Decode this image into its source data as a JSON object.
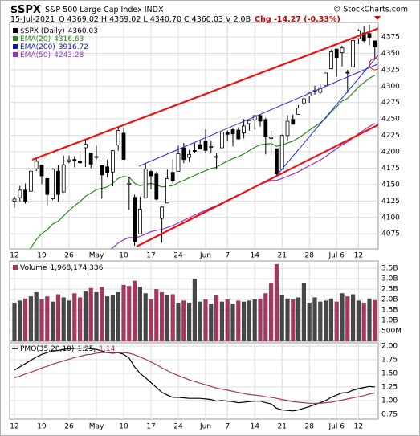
{
  "header": {
    "symbol": "$SPX",
    "name": "S&P 500 Large Cap Index INDX",
    "credit": "© StockCharts.com",
    "date": "15-Jul-2021",
    "quote": "O 4369.02 H 4369.02 L 4340.70 C 4360.03 V 2.0B",
    "change": "Chg -14.27 (-0.33%)"
  },
  "chart_data": [
    {
      "type": "candlestick",
      "series_label": "$SPX (Daily)",
      "last": 4360.03,
      "color": "#000000",
      "up_fill": "#ffffff",
      "down_fill": "#000000",
      "categories": [
        "12",
        null,
        null,
        null,
        null,
        "19",
        null,
        null,
        null,
        null,
        "26",
        null,
        null,
        null,
        null,
        "May",
        null,
        null,
        null,
        null,
        "10",
        null,
        null,
        null,
        null,
        "17",
        null,
        null,
        null,
        null,
        "24",
        null,
        null,
        null,
        null,
        "Jun",
        null,
        null,
        null,
        "7",
        null,
        null,
        null,
        null,
        "14",
        null,
        null,
        null,
        null,
        "21",
        null,
        null,
        null,
        null,
        "28",
        null,
        null,
        null,
        null,
        "Jul 6",
        null,
        null,
        null,
        "12",
        null,
        null,
        null
      ],
      "open": [
        4124.71,
        4130.1,
        4141.58,
        4139.76,
        4174.14,
        4179.8,
        4159.18,
        4128.42,
        4170.46,
        4138.78,
        4185.03,
        4188.25,
        4185.14,
        4206.14,
        4198.1,
        4191.98,
        4179.04,
        4177.06,
        4169.14,
        4210.34,
        4228.29,
        4150.34,
        4130.55,
        4074.99,
        4129.58,
        4169.92,
        4165.94,
        4098.45,
        4121.97,
        4168.61,
        4170.16,
        4205.94,
        4191.59,
        4201.94,
        4210.77,
        4216.52,
        4206.82,
        4191.43,
        4206.05,
        4229.34,
        4233.81,
        4232.99,
        4228.56,
        4242.9,
        4248.31,
        4255.28,
        4248.87,
        4220.37,
        4204.78,
        4173.4,
        4224.61,
        4249.27,
        4256.97,
        4274.45,
        4284.9,
        4293.21,
        4290.65,
        4300.73,
        4326.6,
        4356.46,
        4351.01,
        4321.07,
        4329.38,
        4372.41,
        4381.07,
        4380.11,
        4369.02
      ],
      "high": [
        4131.76,
        4148.0,
        4151.69,
        4173.49,
        4191.31,
        4180.81,
        4159.18,
        4175.02,
        4179.57,
        4194.17,
        4194.19,
        4193.35,
        4201.53,
        4218.78,
        4198.1,
        4209.39,
        4179.04,
        4187.72,
        4202.7,
        4238.04,
        4236.39,
        4162.04,
        4134.73,
        4131.58,
        4183.13,
        4171.92,
        4169.15,
        4116.93,
        4172.8,
        4188.72,
        4209.52,
        4213.42,
        4202.61,
        4213.38,
        4218.36,
        4234.12,
        4217.37,
        4197.82,
        4233.45,
        4232.34,
        4236.74,
        4237.09,
        4249.74,
        4248.38,
        4255.59,
        4257.16,
        4251.89,
        4232.29,
        4204.78,
        4226.24,
        4255.84,
        4256.6,
        4271.28,
        4286.12,
        4292.14,
        4300.52,
        4302.43,
        4320.66,
        4355.43,
        4356.46,
        4361.88,
        4324.81,
        4371.6,
        4386.68,
        4392.37,
        4393.68,
        4369.02
      ],
      "low": [
        4114.82,
        4124.43,
        4120.87,
        4139.76,
        4170.75,
        4150.47,
        4118.38,
        4126.35,
        4123.69,
        4138.78,
        4182.36,
        4176.22,
        4181.78,
        4176.81,
        4174.85,
        4188.03,
        4128.59,
        4160.94,
        4147.33,
        4201.64,
        4188.13,
        4111.53,
        4056.88,
        4074.99,
        4129.58,
        4142.69,
        4125.99,
        4061.41,
        4121.97,
        4151.72,
        4170.16,
        4182.52,
        4184.11,
        4197.78,
        4203.57,
        4197.59,
        4198.27,
        4173.94,
        4206.05,
        4215.66,
        4208.41,
        4218.74,
        4220.34,
        4232.25,
        4234.07,
        4238.35,
        4195.99,
        4196.05,
        4164.4,
        4173.4,
        4217.27,
        4241.43,
        4256.97,
        4271.16,
        4274.67,
        4287.04,
        4287.96,
        4300.73,
        4326.6,
        4314.37,
        4329.79,
        4289.67,
        4329.38,
        4364.03,
        4366.92,
        4362.18,
        4340.7
      ],
      "close": [
        4127.99,
        4141.59,
        4124.66,
        4170.42,
        4185.47,
        4163.26,
        4134.94,
        4173.42,
        4134.98,
        4180.17,
        4187.62,
        4186.72,
        4183.18,
        4211.47,
        4181.17,
        4192.66,
        4164.66,
        4167.59,
        4201.62,
        4232.6,
        4188.43,
        4152.1,
        4063.04,
        4112.5,
        4173.85,
        4163.29,
        4127.83,
        4115.68,
        4159.12,
        4155.86,
        4197.05,
        4188.13,
        4195.99,
        4200.88,
        4204.11,
        4202.04,
        4208.12,
        4192.85,
        4229.89,
        4226.52,
        4227.26,
        4219.55,
        4239.18,
        4247.44,
        4255.15,
        4246.59,
        4223.7,
        4221.86,
        4166.45,
        4224.79,
        4246.44,
        4241.84,
        4266.49,
        4280.7,
        4290.61,
        4291.8,
        4297.5,
        4319.94,
        4352.34,
        4343.54,
        4358.13,
        4320.82,
        4369.55,
        4384.63,
        4369.21,
        4374.3,
        4360.03
      ],
      "overlays": [
        {
          "name": "EMA(20)",
          "last": 4316.63,
          "color": "#2a8a1e",
          "values": [
            4021,
            4032.5,
            4041.3,
            4053.6,
            4066.2,
            4075.4,
            4081.1,
            4089.9,
            4094.2,
            4102.4,
            4110.5,
            4117.8,
            4124.0,
            4132.3,
            4137.0,
            4142.3,
            4144.4,
            4146.6,
            4151.8,
            4159.5,
            4162.3,
            4161.3,
            4151.9,
            4148.1,
            4150.6,
            4151.8,
            4149.5,
            4146.3,
            4147.5,
            4148.3,
            4152.9,
            4156.3,
            4160.1,
            4164.0,
            4167.8,
            4171.1,
            4174.6,
            4176.3,
            4181.4,
            4185.7,
            4189.7,
            4192.5,
            4196.9,
            4201.7,
            4206.8,
            4210.6,
            4211.8,
            4212.8,
            4208.4,
            4210.0,
            4213.5,
            4216.2,
            4221.0,
            4226.7,
            4232.8,
            4238.4,
            4244.0,
            4251.2,
            4260.8,
            4268.7,
            4277.2,
            4281.4,
            4289.8,
            4298.8,
            4305.5,
            4312.0,
            4316.6
          ]
        },
        {
          "name": "EMA(200)",
          "last": 3916.72,
          "color": "#1414b8"
        },
        {
          "name": "EMA(50)",
          "last": 4243.28,
          "color": "#9b30c8",
          "values": [
            3927.2,
            3935.7,
            3943.0,
            3952.0,
            3961.1,
            3969.0,
            3975.5,
            3983.2,
            3989.2,
            3996.7,
            4004.2,
            4011.3,
            4018.0,
            4025.6,
            4031.7,
            4038.0,
            4042.9,
            4047.8,
            4053.8,
            4060.9,
            4065.9,
            4069.3,
            4069.1,
            4070.8,
            4074.8,
            4078.3,
            4080.3,
            4081.6,
            4084.7,
            4087.5,
            4091.7,
            4095.5,
            4099.5,
            4103.4,
            4107.3,
            4111.0,
            4114.8,
            4117.9,
            4122.2,
            4126.3,
            4130.3,
            4133.8,
            4137.9,
            4142.2,
            4146.6,
            4150.6,
            4153.5,
            4156.1,
            4156.5,
            4159.3,
            4162.7,
            4165.8,
            4169.7,
            4174.1,
            4178.7,
            4183.2,
            4187.6,
            4192.8,
            4199.0,
            4204.7,
            4210.7,
            4215.1,
            4221.1,
            4227.5,
            4233.1,
            4238.6,
            4243.3
          ]
        }
      ],
      "ylim": [
        4052,
        4397
      ],
      "yticks": [
        4075,
        4100,
        4125,
        4150,
        4175,
        4200,
        4225,
        4250,
        4275,
        4300,
        4325,
        4350,
        4375
      ],
      "grid": true
    },
    {
      "type": "bar",
      "name": "Volume",
      "last_label": "1,968,174,336",
      "up_color": "#474747",
      "down_color": "#a3385f",
      "values": [
        1.85,
        1.95,
        2.05,
        2.15,
        2.35,
        2.0,
        2.15,
        1.9,
        2.25,
        2.1,
        1.95,
        2.3,
        2.1,
        2.4,
        2.55,
        2.35,
        2.6,
        2.15,
        2.2,
        2.35,
        2.7,
        2.65,
        2.9,
        2.6,
        2.3,
        2.0,
        2.5,
        2.35,
        2.2,
        2.25,
        1.85,
        1.95,
        1.85,
        3.0,
        1.9,
        2.0,
        1.8,
        2.2,
        1.9,
        2.0,
        1.8,
        1.95,
        1.9,
        1.95,
        2.0,
        2.05,
        2.3,
        2.8,
        3.7,
        2.2,
        2.05,
        2.0,
        2.1,
        2.8,
        1.85,
        2.1,
        1.9,
        1.95,
        2.05,
        1.9,
        2.3,
        2.15,
        2.25,
        1.95,
        1.85,
        2.05,
        1.97
      ],
      "ylim": [
        0,
        3.85
      ],
      "yticks": [
        {
          "value": 0.5,
          "label": "500M"
        },
        {
          "value": 1,
          "label": "1.0B"
        },
        {
          "value": 1.5,
          "label": "1.5B"
        },
        {
          "value": 2,
          "label": "2.0B"
        },
        {
          "value": 2.5,
          "label": "2.5B"
        },
        {
          "value": 3,
          "label": "3.0B"
        },
        {
          "value": 3.5,
          "label": "3.5B"
        }
      ],
      "grid": true
    },
    {
      "type": "line",
      "series": [
        {
          "name": "PMO(35,20,10)",
          "last_label": "1.25,",
          "color": "#000000",
          "values": [
            1.56,
            1.62,
            1.68,
            1.74,
            1.8,
            1.85,
            1.88,
            1.91,
            1.92,
            1.94,
            1.95,
            1.96,
            1.96,
            1.97,
            1.95,
            1.94,
            1.91,
            1.88,
            1.87,
            1.88,
            1.85,
            1.78,
            1.62,
            1.5,
            1.42,
            1.33,
            1.24,
            1.15,
            1.1,
            1.06,
            1.06,
            1.05,
            1.04,
            1.04,
            1.04,
            1.03,
            1.02,
            0.99,
            1.0,
            0.99,
            0.98,
            0.96,
            0.97,
            0.98,
            0.99,
            0.99,
            0.96,
            0.94,
            0.86,
            0.83,
            0.82,
            0.81,
            0.83,
            0.86,
            0.89,
            0.93,
            0.96,
            1.0,
            1.06,
            1.1,
            1.14,
            1.15,
            1.19,
            1.22,
            1.24,
            1.26,
            1.25
          ]
        },
        {
          "last_label": "1.14",
          "color": "#a3385f",
          "values": [
            1.42,
            1.45,
            1.49,
            1.52,
            1.56,
            1.6,
            1.63,
            1.67,
            1.7,
            1.73,
            1.76,
            1.79,
            1.81,
            1.84,
            1.85,
            1.87,
            1.88,
            1.88,
            1.88,
            1.88,
            1.88,
            1.87,
            1.84,
            1.8,
            1.76,
            1.71,
            1.66,
            1.6,
            1.55,
            1.5,
            1.46,
            1.42,
            1.38,
            1.35,
            1.32,
            1.29,
            1.26,
            1.23,
            1.21,
            1.19,
            1.17,
            1.15,
            1.13,
            1.11,
            1.1,
            1.09,
            1.07,
            1.06,
            1.04,
            1.02,
            1.0,
            0.98,
            0.97,
            0.96,
            0.95,
            0.95,
            0.95,
            0.96,
            0.97,
            0.99,
            1.01,
            1.03,
            1.05,
            1.07,
            1.09,
            1.12,
            1.14
          ]
        }
      ],
      "ylim": [
        0.66,
        2.06
      ],
      "yticks": [
        {
          "value": 0.75,
          "label": "0.75"
        },
        {
          "value": 1,
          "label": "1.00"
        },
        {
          "value": 1.25,
          "label": "1.25"
        },
        {
          "value": 1.5,
          "label": "1.50"
        },
        {
          "value": 1.75,
          "label": "1.75"
        },
        {
          "value": 2,
          "label": "2.00"
        }
      ],
      "grid": true
    }
  ]
}
